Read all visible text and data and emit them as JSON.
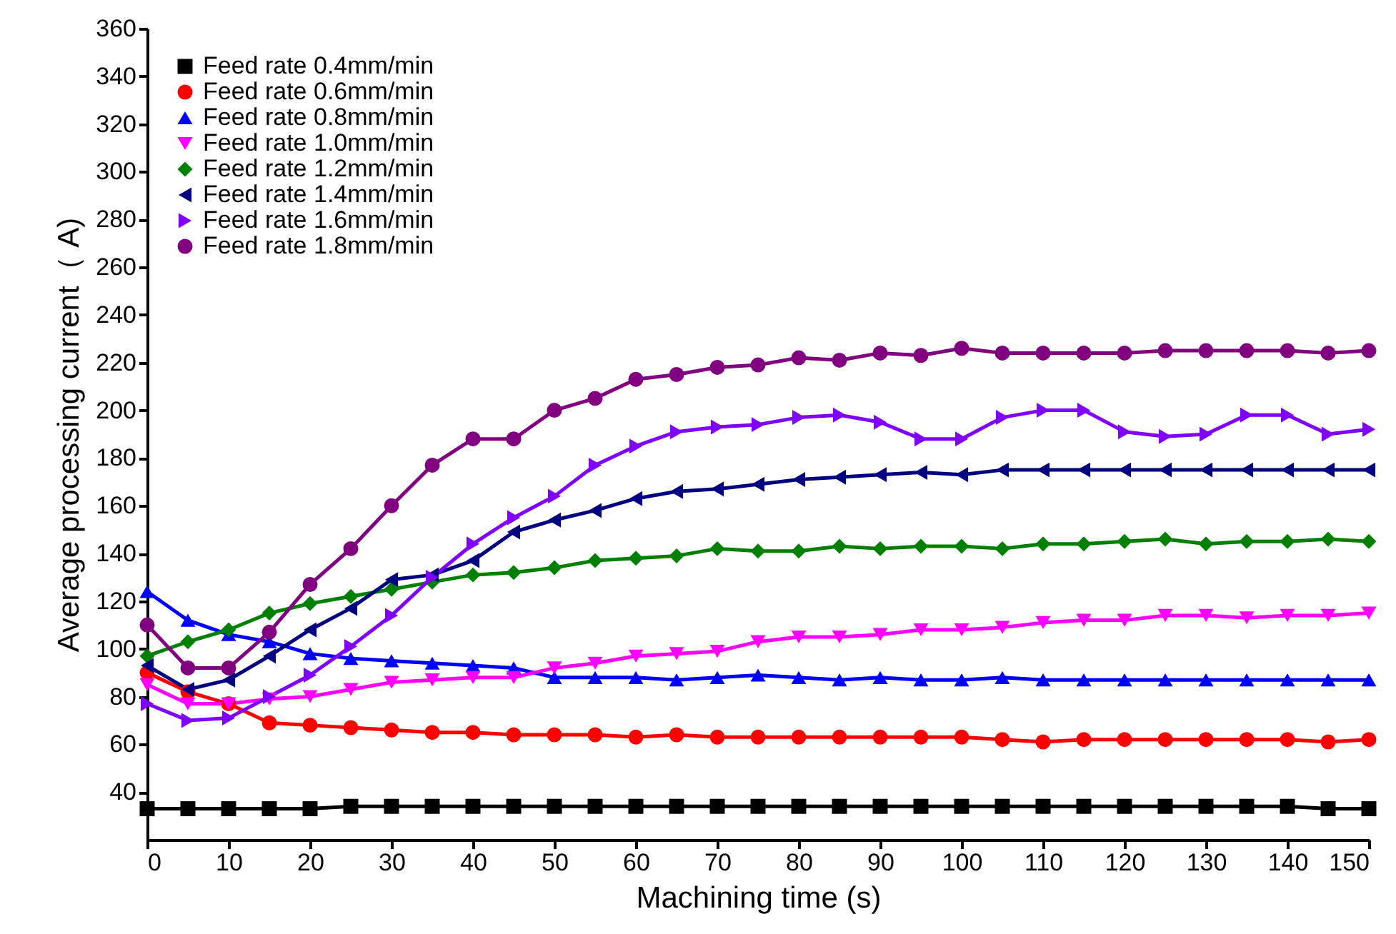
{
  "chart_data": {
    "type": "line",
    "xlabel": "Machining time (s)",
    "ylabel": "Average  processing current（ A)",
    "x": [
      0,
      5,
      10,
      15,
      20,
      25,
      30,
      35,
      40,
      45,
      50,
      55,
      60,
      65,
      70,
      75,
      80,
      85,
      90,
      95,
      100,
      105,
      110,
      115,
      120,
      125,
      130,
      135,
      140,
      145,
      150
    ],
    "xlim": [
      0,
      150
    ],
    "xticks": [
      0,
      10,
      20,
      30,
      40,
      50,
      60,
      70,
      80,
      90,
      100,
      110,
      120,
      130,
      140,
      150
    ],
    "ylim": [
      20,
      360
    ],
    "yticks": [
      40,
      60,
      80,
      100,
      120,
      140,
      160,
      180,
      200,
      220,
      240,
      260,
      280,
      300,
      320,
      340,
      360
    ],
    "legend": "top left",
    "grid": false,
    "line_style": "solid",
    "series": [
      {
        "name": "Feed rate  0.4mm/min",
        "color": "#000000",
        "marker": "square",
        "values": [
          33,
          33,
          33,
          33,
          33,
          34,
          34,
          34,
          34,
          34,
          34,
          34,
          34,
          34,
          34,
          34,
          34,
          34,
          34,
          34,
          34,
          34,
          34,
          34,
          34,
          34,
          34,
          34,
          34,
          33,
          33
        ]
      },
      {
        "name": "Feed rate  0.6mm/min",
        "color": "#ff0000",
        "marker": "circle",
        "values": [
          90,
          82,
          77,
          69,
          68,
          67,
          66,
          65,
          65,
          64,
          64,
          64,
          63,
          64,
          63,
          63,
          63,
          63,
          63,
          63,
          63,
          62,
          61,
          62,
          62,
          62,
          62,
          62,
          62,
          61,
          62
        ]
      },
      {
        "name": "Feed rate  0.8mm/min",
        "color": "#0000ff",
        "marker": "triangle-up",
        "values": [
          124,
          112,
          106,
          103,
          98,
          96,
          95,
          94,
          93,
          92,
          88,
          88,
          88,
          87,
          88,
          89,
          88,
          87,
          88,
          87,
          87,
          88,
          87,
          87,
          87,
          87,
          87,
          87,
          87,
          87,
          87
        ]
      },
      {
        "name": "Feed rate  1.0mm/min",
        "color": "#ff00ff",
        "marker": "triangle-down",
        "values": [
          85,
          77,
          77,
          79,
          80,
          83,
          86,
          87,
          88,
          88,
          92,
          94,
          97,
          98,
          99,
          103,
          105,
          105,
          106,
          108,
          108,
          109,
          111,
          112,
          112,
          114,
          114,
          113,
          114,
          114,
          115
        ]
      },
      {
        "name": "Feed rate  1.2mm/min",
        "color": "#008000",
        "marker": "diamond",
        "values": [
          97,
          103,
          108,
          115,
          119,
          122,
          125,
          128,
          131,
          132,
          134,
          137,
          138,
          139,
          142,
          141,
          141,
          143,
          142,
          143,
          143,
          142,
          144,
          144,
          145,
          146,
          144,
          145,
          145,
          146,
          145
        ]
      },
      {
        "name": "Feed rate  1.4mm/min",
        "color": "#000080",
        "marker": "triangle-left",
        "values": [
          93,
          83,
          87,
          97,
          108,
          117,
          129,
          131,
          137,
          149,
          154,
          158,
          163,
          166,
          167,
          169,
          171,
          172,
          173,
          174,
          173,
          175,
          175,
          175,
          175,
          175,
          175,
          175,
          175,
          175,
          175
        ]
      },
      {
        "name": "Feed rate  1.6mm/min",
        "color": "#8000ff",
        "marker": "triangle-right",
        "values": [
          77,
          70,
          71,
          80,
          89,
          101,
          114,
          130,
          144,
          155,
          164,
          177,
          185,
          191,
          193,
          194,
          197,
          198,
          195,
          188,
          188,
          197,
          200,
          200,
          191,
          189,
          190,
          198,
          198,
          190,
          192
        ]
      },
      {
        "name": "Feed rate  1.8mm/min",
        "color": "#800080",
        "marker": "circle",
        "values": [
          110,
          92,
          92,
          107,
          127,
          142,
          160,
          177,
          188,
          188,
          200,
          205,
          213,
          215,
          218,
          219,
          222,
          221,
          224,
          223,
          226,
          224,
          224,
          224,
          224,
          225,
          225,
          225,
          225,
          224,
          225
        ]
      }
    ]
  }
}
